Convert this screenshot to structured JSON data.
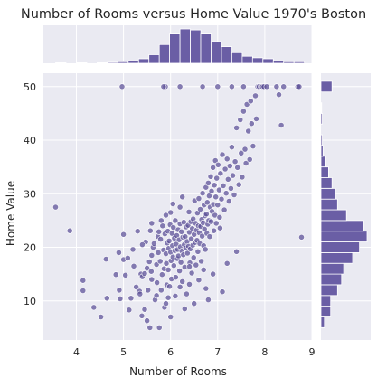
{
  "chart_data": {
    "type": "scatter",
    "title": "Number of Rooms versus Home Value 1970's Boston",
    "xlabel": "Number of Rooms",
    "ylabel": "Home Value",
    "xlim": [
      3.3,
      9.0
    ],
    "ylim": [
      2.7,
      52.5
    ],
    "x_ticks": [
      4,
      5,
      6,
      7,
      8,
      9
    ],
    "y_ticks": [
      10,
      20,
      30,
      40,
      50
    ],
    "grid": true,
    "style": "jointplot with marginal histograms",
    "colors": {
      "background": "#eaeaf2",
      "point_fill": "#5a4e96",
      "point_edge": "#ffffff",
      "bar_fill": "#6a5ea5",
      "bar_edge": "#ffffff",
      "grid": "#ffffff",
      "text": "#262626"
    },
    "points": [
      [
        3.56,
        27.5
      ],
      [
        3.86,
        23.1
      ],
      [
        4.14,
        13.8
      ],
      [
        4.14,
        11.9
      ],
      [
        4.37,
        8.8
      ],
      [
        4.52,
        7.0
      ],
      [
        4.63,
        17.8
      ],
      [
        4.65,
        10.5
      ],
      [
        4.84,
        14.9
      ],
      [
        4.9,
        19.0
      ],
      [
        4.91,
        12.0
      ],
      [
        4.93,
        10.4
      ],
      [
        4.97,
        50.0
      ],
      [
        5.0,
        22.4
      ],
      [
        5.0,
        17.7
      ],
      [
        5.04,
        14.8
      ],
      [
        5.09,
        18.0
      ],
      [
        5.12,
        8.3
      ],
      [
        5.16,
        10.5
      ],
      [
        5.22,
        16.5
      ],
      [
        5.27,
        12.6
      ],
      [
        5.34,
        11.8
      ],
      [
        5.37,
        15.0
      ],
      [
        5.39,
        7.2
      ],
      [
        5.4,
        14.5
      ],
      [
        5.45,
        8.4
      ],
      [
        5.47,
        21.0
      ],
      [
        5.5,
        16.1
      ],
      [
        5.52,
        12.0
      ],
      [
        5.56,
        5.0
      ],
      [
        5.57,
        23.1
      ],
      [
        5.59,
        15.5
      ],
      [
        5.6,
        14.0
      ],
      [
        5.6,
        18.5
      ],
      [
        5.63,
        20.0
      ],
      [
        5.67,
        10.2
      ],
      [
        5.7,
        16.8
      ],
      [
        5.71,
        13.4
      ],
      [
        5.73,
        22.0
      ],
      [
        5.74,
        19.0
      ],
      [
        5.76,
        5.0
      ],
      [
        5.78,
        17.4
      ],
      [
        5.79,
        21.5
      ],
      [
        5.8,
        12.0
      ],
      [
        5.82,
        14.9
      ],
      [
        5.83,
        24.0
      ],
      [
        5.85,
        19.5
      ],
      [
        5.86,
        16.0
      ],
      [
        5.87,
        8.8
      ],
      [
        5.88,
        22.5
      ],
      [
        5.89,
        50.0
      ],
      [
        5.9,
        18.8
      ],
      [
        5.91,
        17.0
      ],
      [
        5.92,
        13.0
      ],
      [
        5.93,
        20.8
      ],
      [
        5.94,
        23.0
      ],
      [
        5.95,
        15.8
      ],
      [
        5.96,
        19.8
      ],
      [
        5.97,
        21.2
      ],
      [
        5.98,
        12.7
      ],
      [
        5.99,
        24.2
      ],
      [
        6.0,
        19.1
      ],
      [
        6.01,
        17.5
      ],
      [
        6.02,
        14.1
      ],
      [
        6.03,
        22.6
      ],
      [
        6.04,
        20.3
      ],
      [
        6.05,
        18.2
      ],
      [
        6.06,
        23.7
      ],
      [
        6.07,
        16.6
      ],
      [
        6.08,
        21.7
      ],
      [
        6.09,
        19.4
      ],
      [
        6.1,
        25.0
      ],
      [
        6.11,
        14.4
      ],
      [
        6.12,
        20.6
      ],
      [
        6.13,
        22.2
      ],
      [
        6.14,
        17.9
      ],
      [
        6.15,
        19.6
      ],
      [
        6.16,
        23.3
      ],
      [
        6.17,
        18.4
      ],
      [
        6.18,
        21.4
      ],
      [
        6.19,
        15.6
      ],
      [
        6.2,
        24.4
      ],
      [
        6.21,
        20.1
      ],
      [
        6.22,
        17.2
      ],
      [
        6.23,
        22.9
      ],
      [
        6.24,
        19.3
      ],
      [
        6.25,
        13.6
      ],
      [
        6.26,
        21.9
      ],
      [
        6.27,
        18.6
      ],
      [
        6.28,
        24.7
      ],
      [
        6.29,
        20.5
      ],
      [
        6.3,
        16.3
      ],
      [
        6.31,
        22.0
      ],
      [
        6.32,
        19.9
      ],
      [
        6.33,
        23.8
      ],
      [
        6.34,
        11.3
      ],
      [
        6.35,
        21.1
      ],
      [
        6.36,
        18.9
      ],
      [
        6.37,
        24.1
      ],
      [
        6.38,
        20.2
      ],
      [
        6.39,
        26.6
      ],
      [
        6.4,
        22.8
      ],
      [
        6.41,
        17.1
      ],
      [
        6.42,
        19.7
      ],
      [
        6.43,
        24.8
      ],
      [
        6.44,
        21.6
      ],
      [
        6.45,
        15.2
      ],
      [
        6.46,
        23.5
      ],
      [
        6.47,
        20.4
      ],
      [
        6.48,
        25.3
      ],
      [
        6.49,
        18.1
      ],
      [
        6.5,
        22.4
      ],
      [
        6.51,
        28.7
      ],
      [
        6.52,
        20.9
      ],
      [
        6.53,
        24.5
      ],
      [
        6.54,
        16.7
      ],
      [
        6.55,
        23.2
      ],
      [
        6.56,
        21.3
      ],
      [
        6.57,
        26.4
      ],
      [
        6.58,
        19.2
      ],
      [
        6.59,
        24.0
      ],
      [
        6.6,
        29.1
      ],
      [
        6.61,
        22.7
      ],
      [
        6.62,
        20.7
      ],
      [
        6.63,
        27.1
      ],
      [
        6.64,
        23.9
      ],
      [
        6.65,
        17.4
      ],
      [
        6.66,
        25.2
      ],
      [
        6.67,
        22.1
      ],
      [
        6.68,
        30.1
      ],
      [
        6.69,
        24.6
      ],
      [
        6.7,
        20.3
      ],
      [
        6.71,
        27.9
      ],
      [
        6.72,
        23.4
      ],
      [
        6.73,
        25.9
      ],
      [
        6.74,
        19.6
      ],
      [
        6.75,
        31.2
      ],
      [
        6.76,
        26.2
      ],
      [
        6.77,
        22.6
      ],
      [
        6.78,
        28.4
      ],
      [
        6.79,
        24.3
      ],
      [
        6.8,
        32.0
      ],
      [
        6.81,
        25.0
      ],
      [
        6.82,
        29.6
      ],
      [
        6.83,
        22.0
      ],
      [
        6.84,
        27.5
      ],
      [
        6.85,
        33.2
      ],
      [
        6.86,
        24.8
      ],
      [
        6.87,
        30.5
      ],
      [
        6.88,
        26.7
      ],
      [
        6.9,
        34.9
      ],
      [
        6.91,
        28.0
      ],
      [
        6.92,
        23.1
      ],
      [
        6.93,
        31.6
      ],
      [
        6.94,
        26.0
      ],
      [
        6.95,
        36.2
      ],
      [
        6.96,
        29.4
      ],
      [
        6.97,
        24.5
      ],
      [
        6.98,
        32.9
      ],
      [
        7.0,
        27.9
      ],
      [
        7.01,
        35.4
      ],
      [
        7.03,
        30.7
      ],
      [
        7.04,
        25.6
      ],
      [
        7.06,
        33.8
      ],
      [
        7.08,
        29.0
      ],
      [
        7.1,
        37.3
      ],
      [
        7.12,
        31.5
      ],
      [
        7.14,
        27.0
      ],
      [
        7.16,
        34.6
      ],
      [
        7.18,
        30.1
      ],
      [
        7.2,
        36.5
      ],
      [
        7.22,
        32.7
      ],
      [
        7.24,
        28.6
      ],
      [
        7.26,
        35.2
      ],
      [
        7.28,
        31.0
      ],
      [
        7.3,
        38.7
      ],
      [
        7.32,
        33.4
      ],
      [
        7.35,
        29.8
      ],
      [
        7.37,
        36.0
      ],
      [
        7.4,
        42.3
      ],
      [
        7.42,
        34.9
      ],
      [
        7.45,
        31.7
      ],
      [
        7.48,
        43.8
      ],
      [
        7.5,
        37.6
      ],
      [
        7.52,
        33.1
      ],
      [
        7.55,
        45.4
      ],
      [
        7.58,
        38.3
      ],
      [
        7.6,
        35.7
      ],
      [
        7.62,
        46.7
      ],
      [
        7.65,
        41.7
      ],
      [
        7.68,
        36.4
      ],
      [
        7.7,
        47.3
      ],
      [
        7.72,
        43.1
      ],
      [
        7.75,
        38.9
      ],
      [
        7.8,
        48.3
      ],
      [
        7.82,
        44.0
      ],
      [
        7.85,
        50.0
      ],
      [
        7.88,
        50.0
      ],
      [
        7.92,
        50.0
      ],
      [
        7.95,
        50.0
      ],
      [
        7.98,
        50.0
      ],
      [
        8.04,
        50.0
      ],
      [
        8.25,
        50.0
      ],
      [
        8.3,
        48.5
      ],
      [
        8.35,
        42.8
      ],
      [
        8.4,
        50.0
      ],
      [
        8.7,
        50.0
      ],
      [
        8.73,
        50.0
      ],
      [
        8.78,
        21.9
      ],
      [
        5.85,
        50.0
      ],
      [
        6.2,
        50.0
      ],
      [
        6.68,
        50.0
      ],
      [
        7.0,
        50.0
      ],
      [
        7.3,
        50.0
      ],
      [
        7.55,
        50.0
      ],
      [
        6.0,
        7.0
      ],
      [
        6.3,
        8.5
      ],
      [
        6.5,
        9.5
      ],
      [
        6.8,
        10.2
      ],
      [
        7.1,
        11.7
      ],
      [
        5.3,
        23.0
      ],
      [
        5.6,
        24.5
      ],
      [
        5.8,
        25.0
      ],
      [
        6.0,
        26.5
      ],
      [
        5.5,
        6.3
      ],
      [
        5.7,
        11.0
      ],
      [
        5.9,
        9.5
      ],
      [
        6.1,
        10.9
      ],
      [
        6.4,
        13.1
      ],
      [
        6.6,
        13.9
      ],
      [
        6.9,
        15.0
      ],
      [
        7.2,
        17.0
      ],
      [
        7.4,
        19.2
      ],
      [
        5.2,
        19.6
      ],
      [
        5.4,
        20.5
      ],
      [
        5.9,
        26.0
      ],
      [
        6.2,
        27.5
      ],
      [
        6.7,
        15.8
      ],
      [
        6.4,
        16.4
      ],
      [
        6.2,
        12.6
      ],
      [
        5.95,
        10.6
      ],
      [
        6.75,
        12.3
      ],
      [
        7.05,
        23.6
      ],
      [
        6.25,
        29.4
      ],
      [
        6.05,
        28.1
      ],
      [
        5.75,
        22.9
      ],
      [
        5.65,
        20.7
      ],
      [
        5.55,
        17.3
      ],
      [
        5.45,
        15.1
      ],
      [
        5.35,
        11.3
      ]
    ],
    "x_hist": {
      "bin_edges": [
        3.56,
        3.78,
        4.0,
        4.22,
        4.44,
        4.66,
        4.88,
        5.1,
        5.32,
        5.54,
        5.76,
        5.98,
        6.2,
        6.42,
        6.64,
        6.86,
        7.08,
        7.3,
        7.52,
        7.74,
        7.96,
        8.18,
        8.4,
        8.62,
        8.84
      ],
      "counts": [
        1,
        0,
        1,
        0,
        1,
        2,
        3,
        5,
        9,
        17,
        37,
        58,
        68,
        66,
        58,
        43,
        33,
        21,
        14,
        11,
        9,
        5,
        3,
        3
      ]
    },
    "y_hist": {
      "bin_edges": [
        5,
        7,
        9,
        11,
        13,
        15,
        17,
        19,
        21,
        23,
        25,
        27,
        29,
        31,
        33,
        35,
        37,
        39,
        41,
        43,
        45,
        47,
        49,
        51
      ],
      "counts": [
        5,
        14,
        14,
        24,
        30,
        33,
        46,
        56,
        67,
        62,
        37,
        24,
        21,
        16,
        11,
        7,
        3,
        2,
        0,
        2,
        1,
        0,
        16
      ]
    }
  }
}
